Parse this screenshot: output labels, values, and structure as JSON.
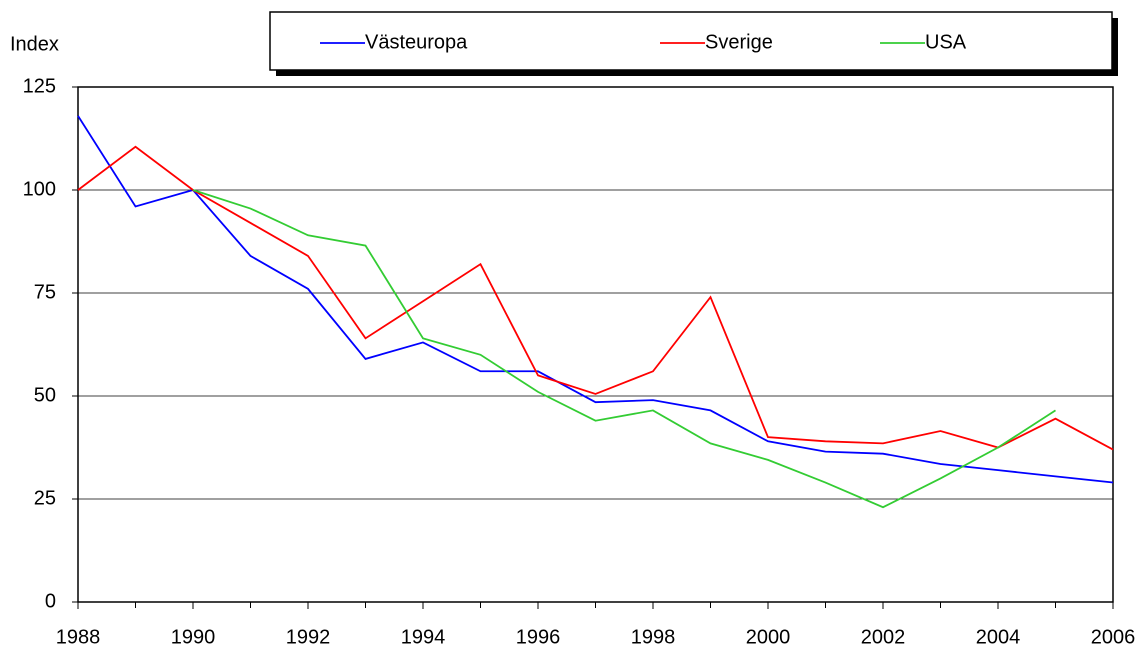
{
  "chart_data": {
    "type": "line",
    "y_label": "Index",
    "x": [
      1988,
      1989,
      1990,
      1991,
      1992,
      1993,
      1994,
      1995,
      1996,
      1997,
      1998,
      1999,
      2000,
      2001,
      2002,
      2003,
      2004,
      2005,
      2006
    ],
    "series": [
      {
        "name": "Västeuropa",
        "color": "#0000ff",
        "values": [
          118,
          96,
          100,
          84,
          76,
          59,
          63,
          56,
          56,
          48.5,
          49,
          46.5,
          39,
          36.5,
          36,
          33.5,
          32,
          30.5,
          29
        ]
      },
      {
        "name": "Sverige",
        "color": "#ff0000",
        "values": [
          100,
          110.5,
          100,
          92,
          84,
          64,
          73,
          82,
          55,
          50.5,
          56,
          74,
          40,
          39,
          38.5,
          41.5,
          37.5,
          44.5,
          37
        ]
      },
      {
        "name": "USA",
        "color": "#33cc33",
        "values": [
          null,
          null,
          100,
          95.5,
          89,
          86.5,
          64,
          60,
          51,
          44,
          46.5,
          38.5,
          34.5,
          29,
          23,
          30,
          37.5,
          46.5,
          null
        ]
      }
    ],
    "xlim": [
      1988,
      2006
    ],
    "xticks": [
      1988,
      1990,
      1992,
      1994,
      1996,
      1998,
      2000,
      2002,
      2004,
      2006
    ],
    "ylim": [
      0,
      125
    ],
    "yticks": [
      0,
      25,
      50,
      75,
      100,
      125
    ],
    "grid": true,
    "legend": "top"
  }
}
